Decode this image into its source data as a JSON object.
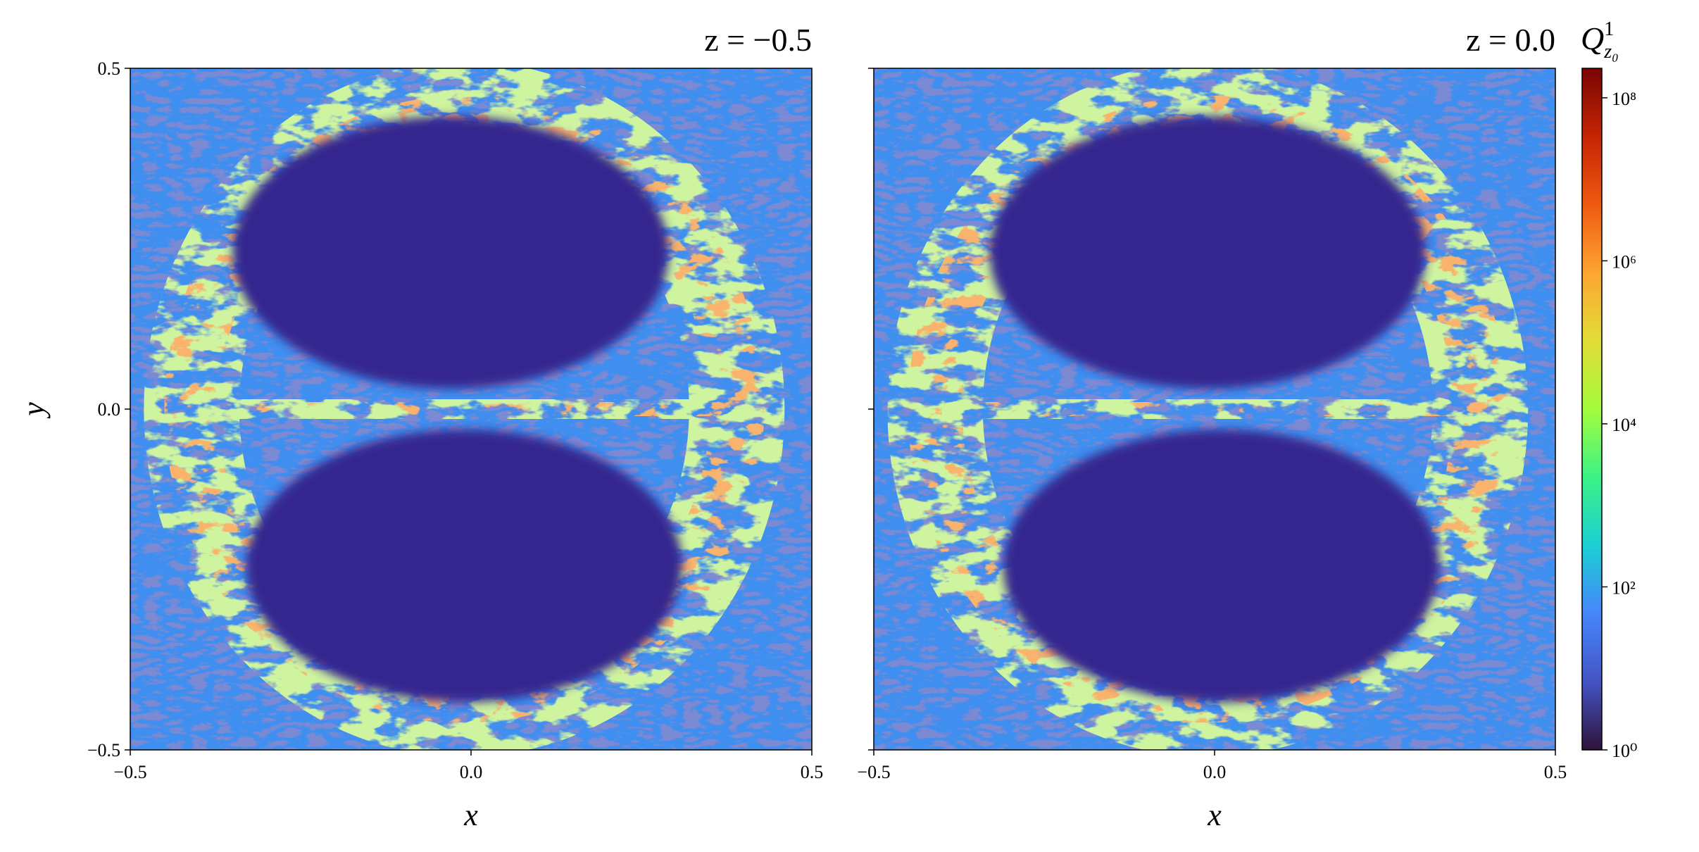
{
  "chart_data": [
    {
      "type": "heatmap",
      "title": "z = −0.5",
      "x_label": "x",
      "y_label": "y",
      "xlim": [
        -0.5,
        0.5
      ],
      "ylim": [
        -0.5,
        0.5
      ],
      "xticks": [
        {
          "value": -0.5,
          "label": "−0.5"
        },
        {
          "value": 0,
          "label": "0.0"
        },
        0.5
      ],
      "yticks": [
        {
          "value": -0.5,
          "label": "−0.5"
        },
        {
          "value": 0,
          "label": "0.0"
        },
        0.5
      ]
    },
    {
      "type": "heatmap",
      "title": "z = 0.0",
      "x_label": "x",
      "xlim": [
        -0.5,
        0.5
      ],
      "ylim": [
        -0.5,
        0.5
      ],
      "xticks": [
        {
          "value": -0.5,
          "label": "−0.5"
        },
        {
          "value": 0,
          "label": "0.0"
        },
        0.5
      ]
    },
    {
      "type": "colorbar",
      "label": "Q",
      "label_superscript": "1",
      "label_subscript": "z₀",
      "colormap": "turbo",
      "log_scale": true,
      "clim": [
        1,
        230000000
      ],
      "ticks": [
        {
          "value": 1,
          "label": "10⁰"
        },
        {
          "value": 100,
          "label": "10²"
        },
        {
          "value": 10000,
          "label": "10⁴"
        },
        {
          "value": 1000000,
          "label": "10⁶"
        },
        {
          "value": 100000000,
          "label": "10⁸"
        }
      ]
    }
  ]
}
